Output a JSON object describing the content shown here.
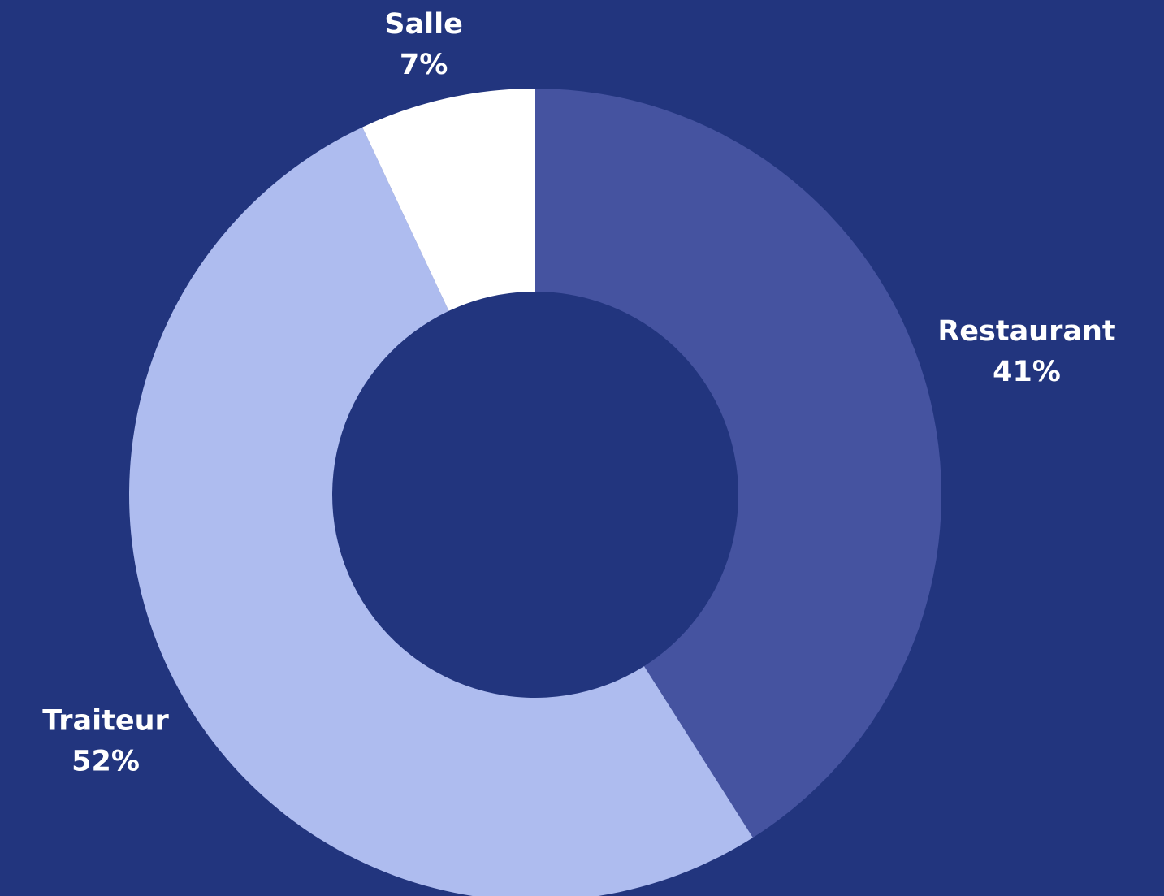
{
  "chart_data": {
    "type": "donut",
    "categories": [
      "Restaurant",
      "Traiteur",
      "Salle"
    ],
    "values": [
      41,
      52,
      7
    ],
    "value_labels": [
      "41%",
      "52%",
      "7%"
    ],
    "colors": [
      "#4553a0",
      "#aebcef",
      "#ffffff"
    ]
  }
}
